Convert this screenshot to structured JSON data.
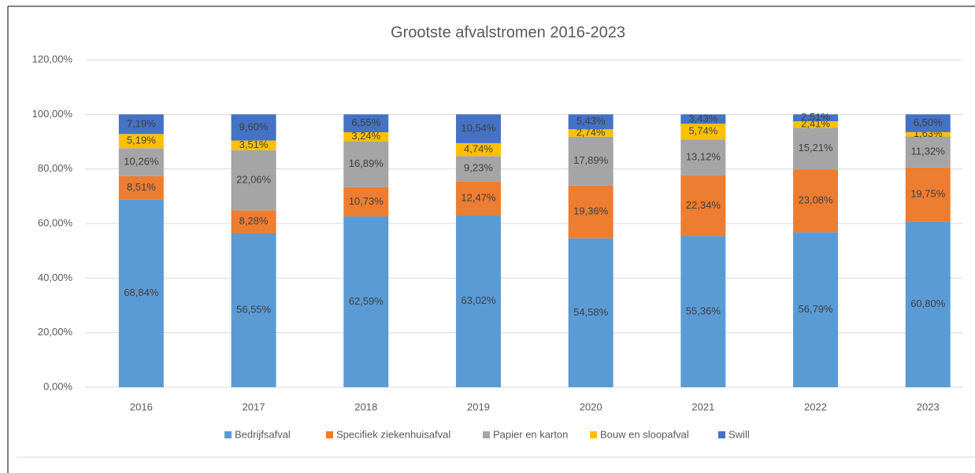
{
  "chart_data": {
    "type": "stacked_bar",
    "title": "Grootste afvalstromen 2016-2023",
    "categories": [
      "2016",
      "2017",
      "2018",
      "2019",
      "2020",
      "2021",
      "2022",
      "2023"
    ],
    "series": [
      {
        "name": "Bedrijfsafval",
        "color": "#5b9bd5",
        "values": [
          68.84,
          56.55,
          62.59,
          63.02,
          54.58,
          55.36,
          56.79,
          60.8
        ],
        "value_labels": [
          "68,84%",
          "56,55%",
          "62,59%",
          "63,02%",
          "54,58%",
          "55,36%",
          "56,79%",
          "60,80%"
        ]
      },
      {
        "name": "Specifiek ziekenhuisafval",
        "color": "#ed7d31",
        "values": [
          8.51,
          8.28,
          10.73,
          12.47,
          19.36,
          22.34,
          23.08,
          19.75
        ],
        "value_labels": [
          "8,51%",
          "8,28%",
          "10,73%",
          "12,47%",
          "19,36%",
          "22,34%",
          "23,08%",
          "19,75%"
        ]
      },
      {
        "name": "Papier en karton",
        "color": "#a5a5a5",
        "values": [
          10.26,
          22.06,
          16.89,
          9.23,
          17.89,
          13.12,
          15.21,
          11.32
        ],
        "value_labels": [
          "10,26%",
          "22,06%",
          "16,89%",
          "9,23%",
          "17,89%",
          "13,12%",
          "15,21%",
          "11,32%"
        ]
      },
      {
        "name": "Bouw en sloopafval",
        "color": "#ffc000",
        "values": [
          5.19,
          3.51,
          3.24,
          4.74,
          2.74,
          5.74,
          2.41,
          1.63
        ],
        "value_labels": [
          "5,19%",
          "3,51%",
          "3,24%",
          "4,74%",
          "2,74%",
          "5,74%",
          "2,41%",
          "1,63%"
        ]
      },
      {
        "name": "Swill",
        "color": "#4472c4",
        "values": [
          7.19,
          9.6,
          6.55,
          10.54,
          5.43,
          3.43,
          2.51,
          6.5
        ],
        "value_labels": [
          "7,19%",
          "9,60%",
          "6,55%",
          "10,54%",
          "5,43%",
          "3,43%",
          "2,51%",
          "6,50%"
        ]
      }
    ],
    "ylim": [
      0,
      120
    ],
    "yticks": [
      {
        "value": 0,
        "label": "0,00%"
      },
      {
        "value": 20,
        "label": "20,00%"
      },
      {
        "value": 40,
        "label": "40,00%"
      },
      {
        "value": 60,
        "label": "60,00%"
      },
      {
        "value": 80,
        "label": "80,00%"
      },
      {
        "value": 100,
        "label": "100,00%"
      },
      {
        "value": 120,
        "label": "120,00%"
      }
    ],
    "grid": true,
    "legend": "bottom"
  }
}
